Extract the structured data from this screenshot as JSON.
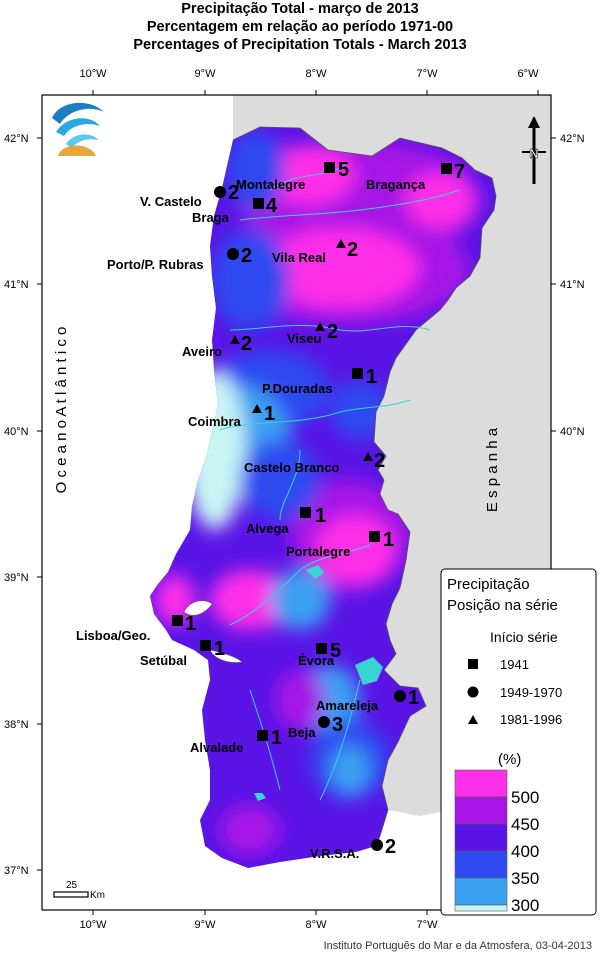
{
  "title": {
    "line1": "Precipitação Total  - março de 2013",
    "line2": "Percentagem em relação ao período 1971-00",
    "line3": "Percentages of Precipitation Totals - March 2013"
  },
  "axes": {
    "lon_labels": [
      "10°W",
      "9°W",
      "8°W",
      "7°W",
      "6°W"
    ],
    "lat_labels": [
      "42°N",
      "41°N",
      "40°N",
      "39°N",
      "38°N",
      "37°N"
    ]
  },
  "ocean_label": "O c e a n o   A t l â n t i c o",
  "spain_label": "E s p a n h a",
  "scale_bar": {
    "value": "25",
    "unit": "Km"
  },
  "north_arrow": {
    "letter": "N"
  },
  "stations": [
    {
      "name": "Montalegre",
      "rank": "5",
      "marker": "square"
    },
    {
      "name": "Bragança",
      "rank": "7",
      "marker": "square"
    },
    {
      "name": "V. Castelo",
      "rank": "2",
      "marker": "circle"
    },
    {
      "name": "Braga",
      "rank": "4",
      "marker": "square"
    },
    {
      "name": "Porto/P. Rubras",
      "rank": "2",
      "marker": "circle"
    },
    {
      "name": "Vila Real",
      "rank": "2",
      "marker": "triangle"
    },
    {
      "name": "Aveiro",
      "rank": "2",
      "marker": "triangle"
    },
    {
      "name": "Viseu",
      "rank": "2",
      "marker": "triangle"
    },
    {
      "name": "P.Douradas",
      "rank": "1",
      "marker": "square"
    },
    {
      "name": "Coimbra",
      "rank": "1",
      "marker": "triangle"
    },
    {
      "name": "Castelo Branco",
      "rank": "2",
      "marker": "triangle"
    },
    {
      "name": "Alvega",
      "rank": "1",
      "marker": "square"
    },
    {
      "name": "Portalegre",
      "rank": "1",
      "marker": "square"
    },
    {
      "name": "Lisboa/Geo.",
      "rank": "1",
      "marker": "square"
    },
    {
      "name": "Setúbal",
      "rank": "1",
      "marker": "square"
    },
    {
      "name": "Évora",
      "rank": "5",
      "marker": "square"
    },
    {
      "name": "Amareleja",
      "rank": "1",
      "marker": "circle"
    },
    {
      "name": "Beja",
      "rank": "3",
      "marker": "circle"
    },
    {
      "name": "Alvalade",
      "rank": "1",
      "marker": "square"
    },
    {
      "name": "V.R.S.A.",
      "rank": "2",
      "marker": "circle"
    }
  ],
  "legend": {
    "title1": "Precipitação",
    "title2": "Posição na série",
    "series_heading": "Início série",
    "series": [
      {
        "label": "1941",
        "marker": "square"
      },
      {
        "label": "1949-1970",
        "marker": "circle"
      },
      {
        "label": "1981-1996",
        "marker": "triangle"
      }
    ],
    "unit": "(%)",
    "classes": [
      {
        "label": "500",
        "color": "#ff2ee8"
      },
      {
        "label": "450",
        "color": "#a615e6"
      },
      {
        "label": "400",
        "color": "#5a14e6"
      },
      {
        "label": "350",
        "color": "#2f4af0"
      },
      {
        "label": "300",
        "color": "#3aa0f2"
      },
      {
        "label": "",
        "color": "#c8f5f4"
      }
    ]
  },
  "colors": {
    "land_spain": "#dcdcdc",
    "sea": "#ffffff",
    "river": "#39d3d3"
  },
  "footer": "Instituto Português do Mar e da Atmosfera, 03-04-2013"
}
